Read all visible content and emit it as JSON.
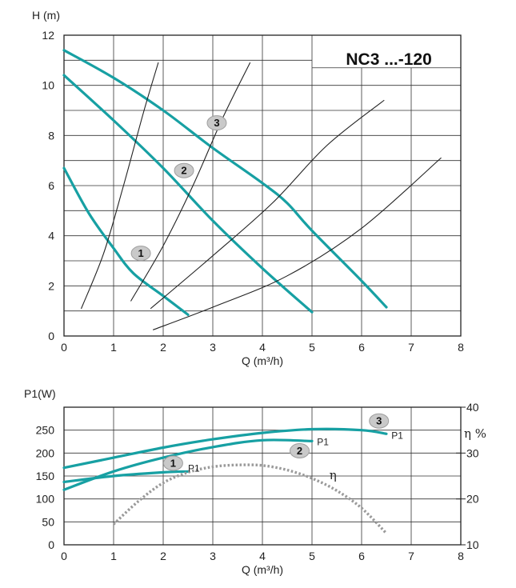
{
  "chart_data": [
    {
      "type": "line",
      "title": "NC3 ...-120",
      "xlabel": "Q (m³/h)",
      "ylabel": "H (m)",
      "xlim": [
        0,
        8
      ],
      "ylim": [
        0,
        12
      ],
      "x_ticks": [
        "0",
        "1",
        "2",
        "3",
        "4",
        "5",
        "6",
        "7",
        "8"
      ],
      "y_ticks": [
        "0",
        "2",
        "4",
        "6",
        "8",
        "10",
        "12"
      ],
      "grid": true,
      "colors": {
        "speed_curves": "#17a0a3",
        "system_curves": "#222222"
      },
      "series": [
        {
          "name": "1",
          "kind": "speed",
          "x": [
            0,
            0.5,
            1.0,
            1.4,
            2.0,
            2.5
          ],
          "y": [
            6.7,
            4.9,
            3.5,
            2.5,
            1.6,
            0.85
          ]
        },
        {
          "name": "2",
          "kind": "speed",
          "x": [
            0,
            1.0,
            2.0,
            3.0,
            4.0,
            5.0
          ],
          "y": [
            10.4,
            8.6,
            6.7,
            4.6,
            2.7,
            0.95
          ]
        },
        {
          "name": "3",
          "kind": "speed",
          "x": [
            0,
            1.0,
            2.0,
            3.0,
            4.0,
            4.5,
            5.0,
            6.0,
            6.5
          ],
          "y": [
            11.4,
            10.3,
            9.0,
            7.5,
            6.1,
            5.3,
            4.2,
            2.2,
            1.15
          ]
        },
        {
          "kind": "system",
          "x": [
            0.35,
            0.8,
            1.2,
            1.6,
            1.9
          ],
          "y": [
            1.1,
            3.3,
            6.0,
            8.9,
            10.9
          ]
        },
        {
          "kind": "system",
          "x": [
            1.35,
            2.0,
            2.6,
            3.2,
            3.75
          ],
          "y": [
            1.4,
            3.6,
            6.0,
            8.7,
            10.9
          ]
        },
        {
          "kind": "system",
          "x": [
            1.75,
            3.0,
            4.2,
            5.3,
            6.45
          ],
          "y": [
            1.1,
            3.2,
            5.3,
            7.6,
            9.4
          ]
        },
        {
          "kind": "system",
          "x": [
            1.8,
            3.0,
            4.5,
            6.0,
            7.6
          ],
          "y": [
            0.25,
            1.15,
            2.4,
            4.3,
            7.1
          ]
        }
      ]
    },
    {
      "type": "line",
      "xlabel": "Q (m³/h)",
      "ylabel": "P1(W)",
      "y2label": "η %",
      "xlim": [
        0,
        8
      ],
      "ylim": [
        0,
        300
      ],
      "y2lim": [
        10,
        40
      ],
      "x_ticks": [
        "0",
        "1",
        "2",
        "3",
        "4",
        "5",
        "6",
        "7",
        "8"
      ],
      "y_ticks": [
        "0",
        "50",
        "100",
        "150",
        "200",
        "250"
      ],
      "y2_ticks": [
        "10",
        "20",
        "30",
        "40"
      ],
      "grid": true,
      "colors": {
        "power": "#17a0a3",
        "efficiency": "#9a9a9a"
      },
      "series": [
        {
          "name": "1",
          "label": "P1",
          "x": [
            0,
            1.0,
            2.0,
            2.5
          ],
          "y": [
            137,
            150,
            158,
            160
          ]
        },
        {
          "name": "2",
          "label": "P1",
          "x": [
            0,
            1.0,
            2.0,
            3.0,
            4.0,
            5.0
          ],
          "y": [
            120,
            160,
            190,
            213,
            228,
            226
          ]
        },
        {
          "name": "3",
          "label": "P1",
          "x": [
            0,
            1.0,
            2.0,
            3.0,
            4.0,
            5.0,
            6.0,
            6.5
          ],
          "y": [
            168,
            190,
            212,
            230,
            244,
            252,
            250,
            242
          ]
        },
        {
          "name": "η",
          "axis": "right",
          "dashed": true,
          "x": [
            1.0,
            1.5,
            2.0,
            2.5,
            3.0,
            3.5,
            4.0,
            4.5,
            5.0,
            5.5,
            6.0,
            6.5
          ],
          "y": [
            14.5,
            19.5,
            23.5,
            25.8,
            27.0,
            27.4,
            27.3,
            26.3,
            24.5,
            21.8,
            18.0,
            12.5
          ]
        }
      ]
    }
  ]
}
